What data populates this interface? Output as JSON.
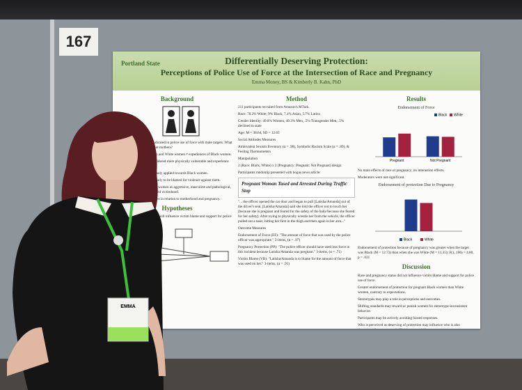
{
  "sign": "167",
  "badge": {
    "name": "EMMA"
  },
  "poster": {
    "logo": "Portland State",
    "title": "Differentially Deserving Protection:",
    "subtitle": "Perceptions of Police Use of Force at the Intersection of Race and Pregnancy",
    "authors": "Emma Money, BS & Kimberly B. Kahn, PhD",
    "background": {
      "heading": "Background",
      "items": [
        "Anti-Black racial bias indicated in police use of force with male targets. What about women? What about mothers?",
        "Experiences of Black men and White women ≠ experiences of Black women.",
        "Pregnant women are considered more physically vulnerable and experience more benevolent sexism.",
        "Implicit racism is more likely applied towards Black women.",
        "Black women are more likely to be blamed for violence against them.",
        "Stereotypes portray Black women as aggressive, masculine and pathological, contradicting femininity and victimhood.",
        "Gendered racial stereotypes in relation to motherhood and pregnancy."
      ]
    },
    "hypotheses": {
      "heading": "Hypotheses",
      "items": [
        "Race and pregnancy status will influence victim blame and support for police use of force."
      ]
    },
    "method": {
      "heading": "Method",
      "items": [
        "211 participants recruited from Amazon's MTurk.",
        "Race: 78.2% White; 9% Black, 7.1% Asian, 5.7% Latinx",
        "Gender Identity: 49.8% Women, 49.3% Men, .5% Transgender Men, .5% declined to state",
        "Age: M = 38.64, SD = 12.65",
        "Social Attitudes Measures",
        "Ambivalent Sexism Inventory (α = .90), Symbolic Racism Scale (α = .89), & Feeling Thermometers",
        "Manipulation",
        "2 (Race: Black, White) x 2 (Pregnancy: Pregnant; Not Pregnant) design",
        "Participants randomly presented with bogus news article:"
      ],
      "article": "Pregnant Woman Tased and Arrested During Traffic Stop",
      "items2": [
        "\"... the officer opened the car door and began to pull [Latisha/Amanda] out of the driver's seat. [Latisha/Amanda] said she told the officer not to touch her [because she is pregnant and feared for the safety of the baby/because she feared for her safety]. After trying to physically wrestle her from the vehicle, the officer pulled out a taser, hitting her first in the thigh and then again in her arm...\"",
        "Outcome Measures",
        "Endorsement of Force (EF): \"The amount of force that was used by the police officer was appropriate.\" 5-items, (α = .97)",
        "Pregnancy Protection (PP): \"The police officer should have used less force in this incident because Latisha/Amanda was pregnant.\" 3-items, (α = .71)",
        "Victim Blame (VB): \"Latisha/Amanda is to blame for the amount of force that was used on her.\" 3-items, (α = .91)"
      ]
    },
    "results": {
      "heading": "Results",
      "charts": [
        {
          "type": "bar",
          "title": "Endorsement of Force",
          "categories": [
            "Pregnant",
            "Not Pregnant"
          ],
          "ylim": [
            0,
            7
          ],
          "legend": "top-right",
          "series": [
            {
              "name": "Black",
              "color": "#1f3d8c",
              "values": [
                3.6,
                3.8
              ]
            },
            {
              "name": "White",
              "color": "#a3203e",
              "values": [
                4.3,
                3.7
              ]
            }
          ]
        },
        {
          "type": "bar",
          "title": "Endorsement of protection Due to Pregnancy",
          "categories": [
            null
          ],
          "ylim": [
            0,
            14
          ],
          "legend": "bottom",
          "series": [
            {
              "name": "Black",
              "color": "#1f3d8c",
              "values": [
                12.73
              ]
            },
            {
              "name": "White",
              "color": "#a3203e",
              "values": [
                11.35
              ]
            }
          ]
        }
      ],
      "items": [
        "No main effects of race or pregnancy; no interaction effects.",
        "Moderators were not significant."
      ],
      "items2": [
        "Endorsement of protection because of pregnancy was greater when the target was Black (M = 12.73) than when she was White (M = 11.35); F(1, 106) = 4.80, p = .031"
      ]
    },
    "discussion": {
      "heading": "Discussion",
      "items": [
        "Race and pregnancy status did not influence victim blame and support for police use of force.",
        "Greater endorsement of protection for pregnant Black women than White women, contrary to expectations.",
        "Stereotypes may play a role in perceptions and outcomes.",
        "Shifting standards may reward or punish women for stereotype-inconsistent behavior.",
        "Participants may be actively avoiding biased responses.",
        "Who is perceived as deserving of protection may influence who is also deserving of resources and official accountability."
      ]
    }
  }
}
